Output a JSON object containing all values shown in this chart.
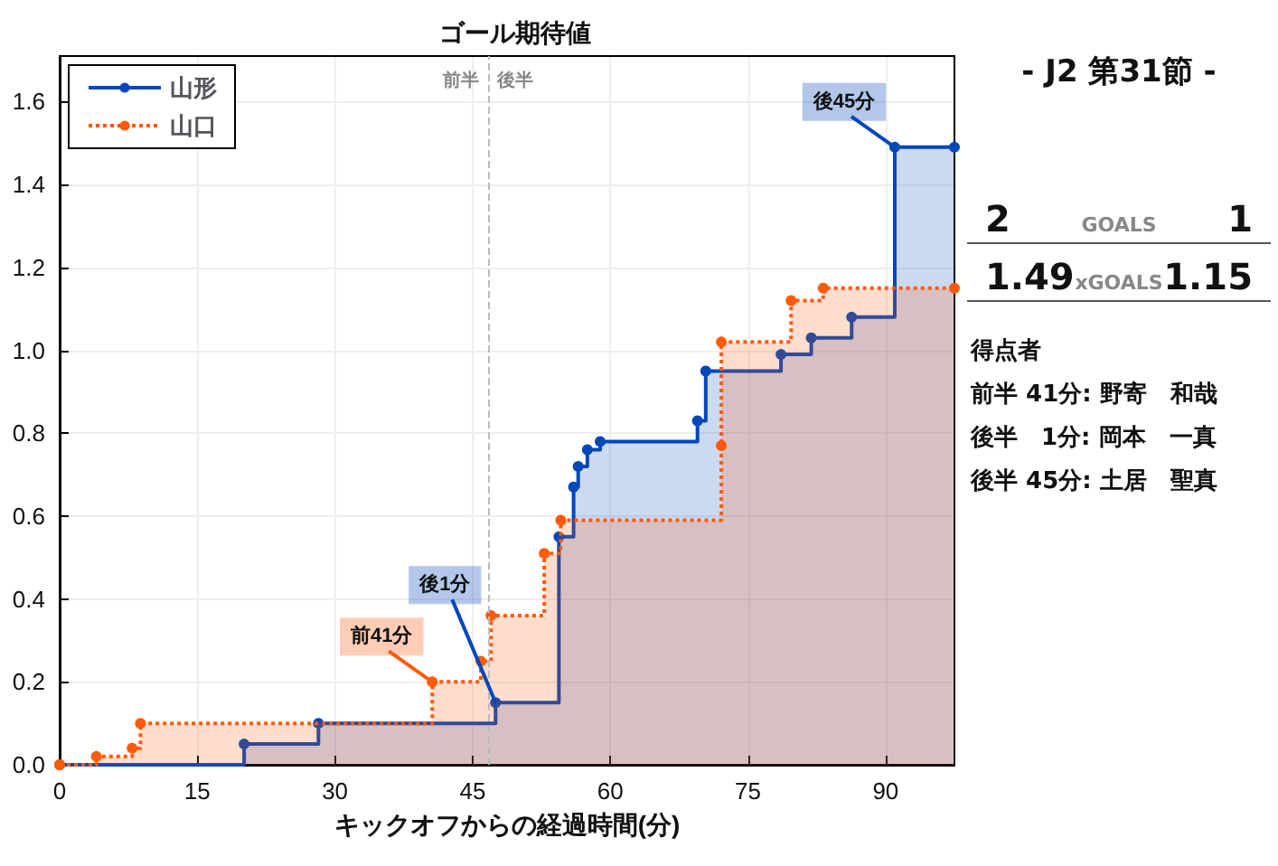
{
  "chart_data": {
    "type": "step",
    "title": "ゴール期待値",
    "xlabel": "キックオフからの経過時間(分)",
    "xlim": [
      0,
      97.5
    ],
    "xticks": [
      0,
      15,
      30,
      45,
      60,
      75,
      90
    ],
    "ylim": [
      0,
      1.71
    ],
    "yticks": [
      {
        "value": 0,
        "label": "0.0"
      },
      {
        "value": 0.2,
        "label": "0.2"
      },
      {
        "value": 0.4,
        "label": "0.4"
      },
      {
        "value": 0.6,
        "label": "0.6"
      },
      {
        "value": 0.8,
        "label": "0.8"
      },
      {
        "value": 1.0,
        "label": "1.0"
      },
      {
        "value": 1.2,
        "label": "1.2"
      },
      {
        "value": 1.4,
        "label": "1.4"
      },
      {
        "value": 1.6,
        "label": "1.6"
      }
    ],
    "grid": true,
    "legend": "top left",
    "marker": "circle",
    "series": [
      {
        "name": "山形",
        "color": "#0047bb",
        "line_style": "solid",
        "x": [
          0,
          20.1,
          28.2,
          47.5,
          54.4,
          56.0,
          56.5,
          57.5,
          58.9,
          69.5,
          70.4,
          78.6,
          81.9,
          86.3,
          91.0,
          97.5
        ],
        "values": [
          0,
          0.05,
          0.1,
          0.15,
          0.55,
          0.67,
          0.72,
          0.76,
          0.78,
          0.83,
          0.95,
          0.99,
          1.03,
          1.08,
          1.49,
          1.49
        ]
      },
      {
        "name": "山口",
        "color": "#ff5a0a",
        "line_style": "dotted",
        "x": [
          0,
          4.0,
          7.9,
          8.8,
          40.6,
          45.9,
          47.0,
          52.8,
          54.6,
          72.1,
          72.1,
          79.7,
          83.2,
          97.5
        ],
        "values": [
          0,
          0.02,
          0.04,
          0.1,
          0.2,
          0.25,
          0.36,
          0.51,
          0.59,
          0.77,
          1.02,
          1.12,
          1.15,
          1.15
        ]
      }
    ],
    "ref_lines": [
      {
        "axis": "x",
        "value": 46.7,
        "label": null,
        "color": "#bbbbbb",
        "line_style": "dashed"
      }
    ],
    "annotations": [
      {
        "text": "前41分",
        "x": 40.6,
        "y": 0.2
      },
      {
        "text": "後1分",
        "x": 47.5,
        "y": 0.15
      },
      {
        "text": "後45分",
        "x": 91.0,
        "y": 1.49
      },
      {
        "text": "前半",
        "x": 46.7,
        "y": 1.65
      },
      {
        "text": "後半",
        "x": 46.7,
        "y": 1.65
      },
      "- J2 第31節 -",
      "2",
      "GOALS",
      "1",
      "1.49",
      "xGOALS",
      "1.15",
      "得点者",
      "前半 41分: 野寄　和哉",
      "後半　1分: 岡本　一真",
      "後半 45分: 土居　聖真"
    ]
  }
}
